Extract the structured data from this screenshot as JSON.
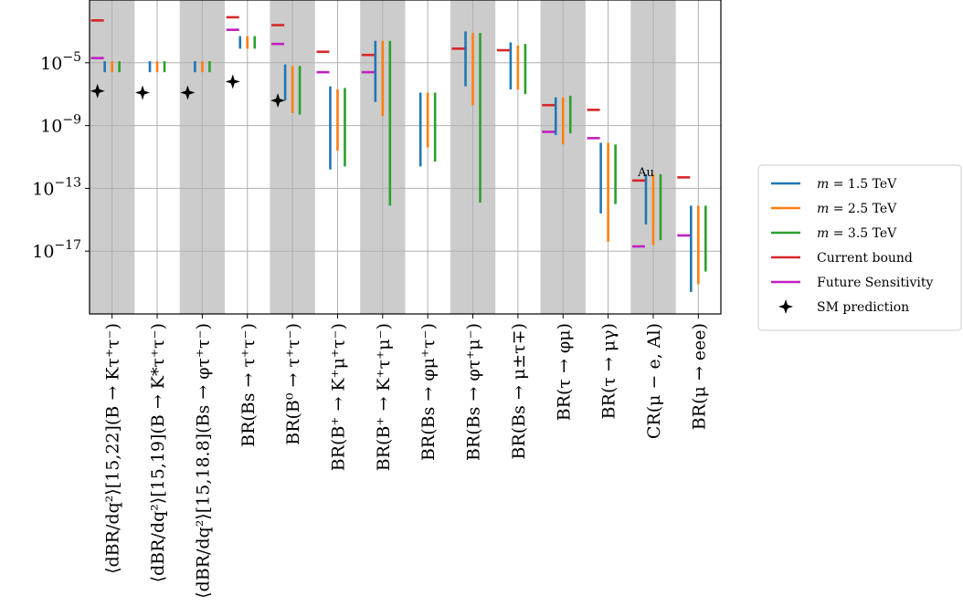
{
  "chart_data": {
    "type": "scatter",
    "y_scale": "log10",
    "ylim_exponent": [
      -21,
      -1
    ],
    "y_ticks": [
      {
        "exp": -5,
        "label": "10^−5",
        "base": "10",
        "sup": "−5"
      },
      {
        "exp": -9,
        "label": "10^−9",
        "base": "10",
        "sup": "−9"
      },
      {
        "exp": -13,
        "label": "10^−13",
        "base": "10",
        "sup": "−13"
      },
      {
        "exp": -17,
        "label": "10^−17",
        "base": "10",
        "sup": "−17"
      }
    ],
    "grid": true,
    "legend_position": "right",
    "colors": {
      "m15": "#1f77b4",
      "m25": "#ff7f0e",
      "m35": "#2ca02c",
      "current": "#d62728",
      "future": "#c020c0",
      "sm": "#000000",
      "shade": "#cccccc"
    },
    "categories": [
      "⟨dBR/dq²⟩[15,22](B → Kτ⁺τ⁻)",
      "⟨dBR/dq²⟩[15,19](B → K*τ⁺τ⁻)",
      "⟨dBR/dq²⟩[15,18.8](Bs → φτ⁺τ⁻)",
      "BR(Bs → τ⁺τ⁻)",
      "BR(B⁰ → τ⁺τ⁻)",
      "BR(B⁺ → K⁺μ⁺τ⁻)",
      "BR(B⁺ → K⁺τ⁺μ⁻)",
      "BR(Bs → φμ⁺τ⁻)",
      "BR(Bs → φτ⁺μ⁻)",
      "BR(Bs → μ±τ∓)",
      "BR(τ → φμ)",
      "BR(τ → μγ)",
      "CR(μ − e, Al)",
      "BR(μ → eee)"
    ],
    "shaded_categories": [
      0,
      2,
      4,
      6,
      8,
      10,
      12
    ],
    "series": [
      {
        "name": "m = 1.5 TeV",
        "ranges_log10": [
          [
            -5.6,
            -4.9
          ],
          [
            -5.6,
            -4.9
          ],
          [
            -5.6,
            -4.9
          ],
          [
            -4.1,
            -3.3
          ],
          [
            -7.4,
            -5.1
          ],
          [
            -11.8,
            -6.5
          ],
          [
            -7.5,
            -3.6
          ],
          [
            -11.6,
            -6.9
          ],
          [
            -6.5,
            -3.0
          ],
          [
            -6.7,
            -3.7
          ],
          [
            -9.6,
            -7.2
          ],
          [
            -14.6,
            -10.1
          ],
          [
            -15.3,
            -12.1
          ],
          [
            -19.6,
            -14.1
          ]
        ]
      },
      {
        "name": "m = 2.5 TeV",
        "ranges_log10": [
          [
            -5.6,
            -4.9
          ],
          [
            -5.6,
            -4.9
          ],
          [
            -5.6,
            -4.9
          ],
          [
            -4.1,
            -3.3
          ],
          [
            -8.2,
            -5.2
          ],
          [
            -10.6,
            -6.7
          ],
          [
            -8.4,
            -3.6
          ],
          [
            -10.4,
            -6.9
          ],
          [
            -7.7,
            -3.1
          ],
          [
            -6.7,
            -3.9
          ],
          [
            -10.2,
            -7.2
          ],
          [
            -16.4,
            -10.1
          ],
          [
            -16.6,
            -12.1
          ],
          [
            -19.1,
            -14.1
          ]
        ]
      },
      {
        "name": "m = 3.5 TeV",
        "ranges_log10": [
          [
            -5.6,
            -4.9
          ],
          [
            -5.6,
            -4.9
          ],
          [
            -5.6,
            -4.9
          ],
          [
            -4.1,
            -3.3
          ],
          [
            -8.3,
            -5.2
          ],
          [
            -11.6,
            -6.6
          ],
          [
            -14.1,
            -3.6
          ],
          [
            -11.3,
            -6.9
          ],
          [
            -13.9,
            -3.1
          ],
          [
            -7.0,
            -3.8
          ],
          [
            -9.5,
            -7.1
          ],
          [
            -14.0,
            -10.2
          ],
          [
            -16.3,
            -12.1
          ],
          [
            -18.3,
            -14.1
          ]
        ]
      }
    ],
    "current_bound_log10": [
      -2.3,
      null,
      null,
      -2.1,
      -2.6,
      -4.3,
      -4.5,
      null,
      -4.1,
      -4.2,
      -7.7,
      -8.0,
      -12.5,
      -12.3
    ],
    "future_sensitivity_log10": [
      -4.7,
      null,
      null,
      -2.9,
      -3.8,
      -5.6,
      -5.6,
      null,
      null,
      null,
      -9.4,
      -9.8,
      -16.7,
      -16.0
    ],
    "sm_prediction_log10": [
      -6.8,
      -6.9,
      -6.9,
      -6.2,
      -7.4,
      null,
      null,
      null,
      null,
      null,
      null,
      null,
      null,
      null
    ],
    "annotations": [
      {
        "text": "Au",
        "category": 12
      }
    ],
    "legend": [
      {
        "label": "m = 1.5 TeV",
        "m": "m",
        "eq": " = 1.5 TeV",
        "kind": "line",
        "color_key": "m15"
      },
      {
        "label": "m = 2.5 TeV",
        "m": "m",
        "eq": " = 2.5 TeV",
        "kind": "line",
        "color_key": "m25"
      },
      {
        "label": "m = 3.5 TeV",
        "m": "m",
        "eq": " = 3.5 TeV",
        "kind": "line",
        "color_key": "m35"
      },
      {
        "label": "Current bound",
        "kind": "line",
        "color_key": "current"
      },
      {
        "label": "Future Sensitivity",
        "kind": "line",
        "color_key": "future"
      },
      {
        "label": "SM prediction",
        "kind": "marker",
        "color_key": "sm"
      }
    ]
  }
}
